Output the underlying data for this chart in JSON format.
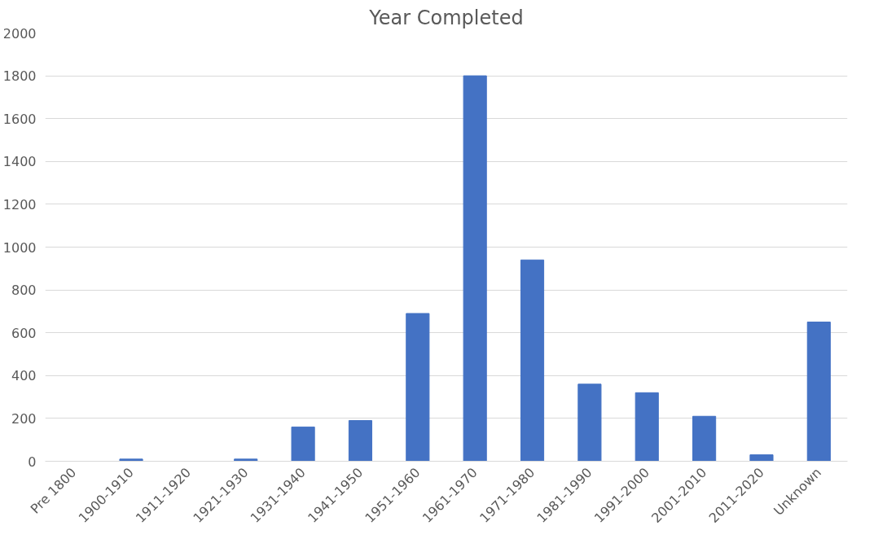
{
  "chart_data": {
    "type": "bar",
    "title": "Year Completed",
    "categories": [
      "Pre 1800",
      "1900-1910",
      "1911-1920",
      "1921-1930",
      "1931-1940",
      "1941-1950",
      "1951-1960",
      "1961-1970",
      "1971-1980",
      "1981-1990",
      "1991-2000",
      "2001-2010",
      "2011-2020",
      "Unknown"
    ],
    "values": [
      0,
      10,
      0,
      10,
      160,
      190,
      690,
      1800,
      940,
      360,
      320,
      210,
      30,
      650
    ],
    "color": "#4472c4",
    "ylim": [
      0,
      2000
    ],
    "yticks": [
      0,
      200,
      400,
      600,
      800,
      1000,
      1200,
      1400,
      1600,
      1800,
      2000
    ],
    "grid": "y"
  }
}
